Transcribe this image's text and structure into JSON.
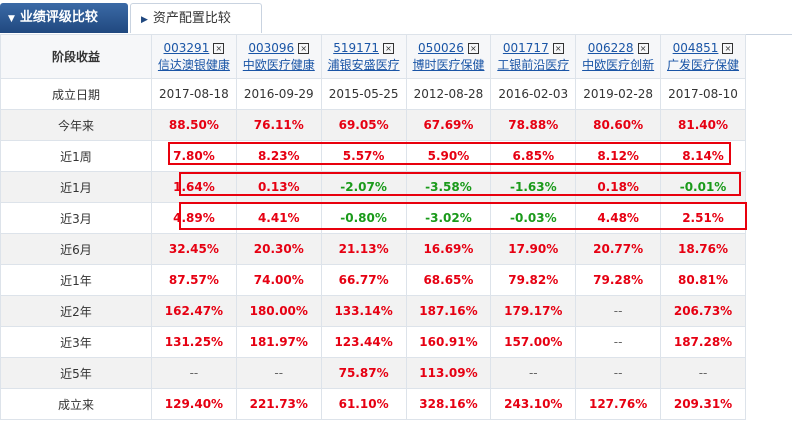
{
  "tabs": [
    "业绩评级比较",
    "资产配置比较"
  ],
  "table": {
    "corner": "阶段收益",
    "funds": [
      {
        "code": "003291",
        "name": "信达澳银健康"
      },
      {
        "code": "003096",
        "name": "中欧医疗健康"
      },
      {
        "code": "519171",
        "name": "浦银安盛医疗"
      },
      {
        "code": "050026",
        "name": "博时医疗保健"
      },
      {
        "code": "001717",
        "name": "工银前沿医疗"
      },
      {
        "code": "006228",
        "name": "中欧医疗创新"
      },
      {
        "code": "004851",
        "name": "广发医疗保健"
      }
    ],
    "rows": [
      {
        "label": "成立日期",
        "cells": [
          "2017-08-18",
          "2016-09-29",
          "2015-05-25",
          "2012-08-28",
          "2016-02-03",
          "2019-02-28",
          "2017-08-10"
        ]
      },
      {
        "label": "今年来",
        "cells": [
          "88.50%",
          "76.11%",
          "69.05%",
          "67.69%",
          "78.88%",
          "80.60%",
          "81.40%"
        ]
      },
      {
        "label": "近1周",
        "cells": [
          "7.80%",
          "8.23%",
          "5.57%",
          "5.90%",
          "6.85%",
          "8.12%",
          "8.14%"
        ]
      },
      {
        "label": "近1月",
        "cells": [
          "1.64%",
          "0.13%",
          "-2.07%",
          "-3.58%",
          "-1.63%",
          "0.18%",
          "-0.01%"
        ]
      },
      {
        "label": "近3月",
        "cells": [
          "4.89%",
          "4.41%",
          "-0.80%",
          "-3.02%",
          "-0.03%",
          "4.48%",
          "2.51%"
        ]
      },
      {
        "label": "近6月",
        "cells": [
          "32.45%",
          "20.30%",
          "21.13%",
          "16.69%",
          "17.90%",
          "20.77%",
          "18.76%"
        ]
      },
      {
        "label": "近1年",
        "cells": [
          "87.57%",
          "74.00%",
          "66.77%",
          "68.65%",
          "79.82%",
          "79.28%",
          "80.81%"
        ]
      },
      {
        "label": "近2年",
        "cells": [
          "162.47%",
          "180.00%",
          "133.14%",
          "187.16%",
          "179.17%",
          "--",
          "206.73%"
        ]
      },
      {
        "label": "近3年",
        "cells": [
          "131.25%",
          "181.97%",
          "123.44%",
          "160.91%",
          "157.00%",
          "--",
          "187.28%"
        ]
      },
      {
        "label": "近5年",
        "cells": [
          "--",
          "--",
          "75.87%",
          "113.09%",
          "--",
          "--",
          "--"
        ]
      },
      {
        "label": "成立来",
        "cells": [
          "129.40%",
          "221.73%",
          "61.10%",
          "328.16%",
          "243.10%",
          "127.76%",
          "209.31%"
        ]
      }
    ]
  }
}
